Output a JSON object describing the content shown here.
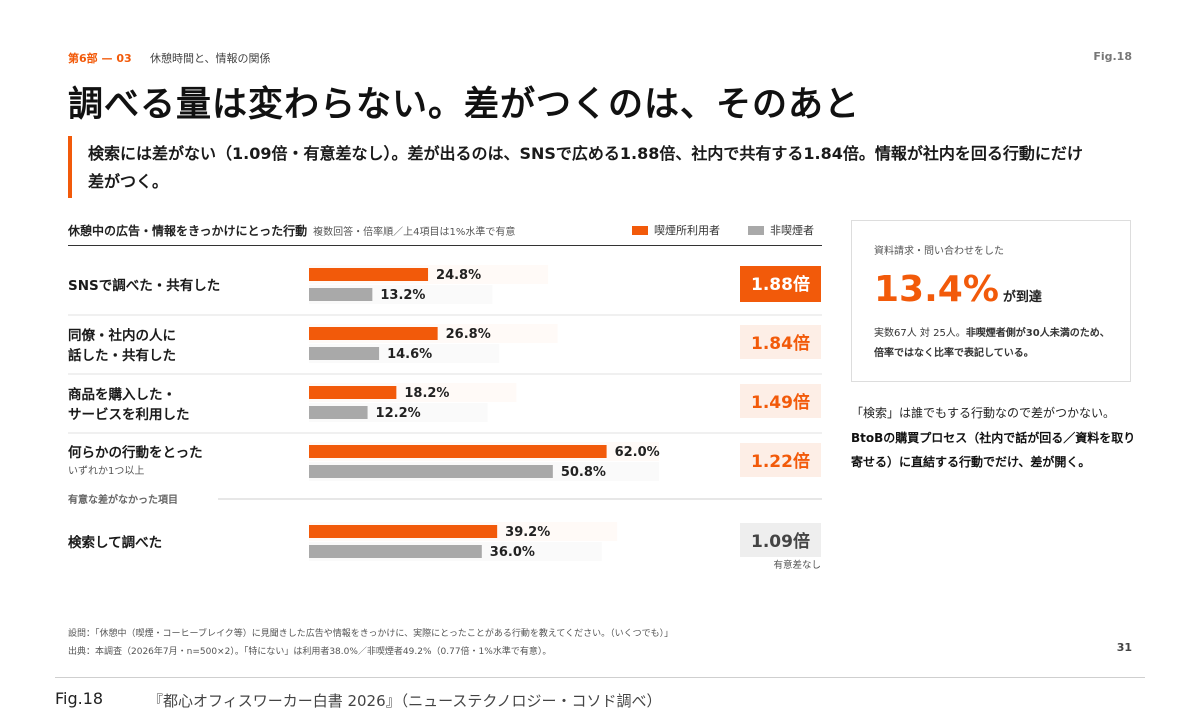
{
  "header": {
    "section_no": "第6部 — 03",
    "section_title": "休憩時間と、情報の関係",
    "fig_tag": "Fig.18"
  },
  "headline": "調べる量は変わらない。差がつくのは、そのあと",
  "lead": "検索には差がない（1.09倍・有意差なし）。差が出るのは、SNSで広める1.88倍、社内で共有する1.84倍。情報が社内を回る行動にだけ差がつく。",
  "colors": {
    "accent": "#f25a0a",
    "smoker": "#f25a0a",
    "non_smoker": "#a9a9a9",
    "ratio_dark": "#f25a0a",
    "ratio_light": "#fdeee6",
    "ratio_gray": "#eeeeee"
  },
  "chart_data": {
    "type": "bar",
    "orientation": "horizontal",
    "title": "休憩中の広告・情報をきっかけにとった行動",
    "note": "複数回答・倍率順／上4項目は1%水準で有意",
    "series": [
      {
        "name": "喫煙所利用者",
        "values": [
          24.8,
          26.8,
          18.2,
          62.0,
          39.2
        ]
      },
      {
        "name": "非喫煙者",
        "values": [
          13.2,
          14.6,
          12.2,
          50.8,
          36.0
        ]
      }
    ],
    "categories": [
      [
        "SNSで調べた・共有した"
      ],
      [
        "同僚・社内の人に",
        "話した・共有した"
      ],
      [
        "商品を購入した・",
        "サービスを利用した"
      ],
      [
        "何らかの行動をとった"
      ],
      [
        "検索して調べた"
      ]
    ],
    "category_sub": [
      "",
      "",
      "",
      "いずれか1つ以上",
      ""
    ],
    "value_labels": [
      [
        "24.8%",
        "13.2%"
      ],
      [
        "26.8%",
        "14.6%"
      ],
      [
        "18.2%",
        "12.2%"
      ],
      [
        "62.0%",
        "50.8%"
      ],
      [
        "39.2%",
        "36.0%"
      ]
    ],
    "ratios": [
      1.88,
      1.84,
      1.49,
      1.22,
      1.09
    ],
    "ratio_labels": [
      "1.88倍",
      "1.84倍",
      "1.49倍",
      "1.22倍",
      "1.09倍"
    ],
    "significant": [
      true,
      true,
      true,
      true,
      false
    ],
    "group_label": "有意な差がなかった項目",
    "ns_label": "有意差なし",
    "xlim": [
      0,
      100
    ],
    "legend_position": "top-right"
  },
  "side": {
    "card_label": "資料請求・問い合わせをした",
    "big_value": "13.4%",
    "big_suffix": "が到達",
    "note_plain": "実数67人 対 25人。",
    "note_bold": "非喫煙者側が30人未満のため、倍率ではなく比率で表記している。",
    "text1": "「検索」は誰でもする行動なので差がつかない。",
    "text2": "BtoBの購買プロセス（社内で話が回る／資料を取り寄せる）に直結する行動でだけ、差が開く。"
  },
  "footer": {
    "question": "設問：「休憩中（喫煙・コーヒーブレイク等）に見聞きした広告や情報をきっかけに、実際にとったことがある行動を教えてください。（いくつでも）」",
    "source": "出典：本調査（2026年7月・n=500×2）。「特にない」は利用者38.0%／非喫煙者49.2%（0.77倍・1%水準で有意）。",
    "page_no": "31"
  },
  "caption": {
    "fig": "Fig.18",
    "text": "『都心オフィスワーカー白書 2026』（ニューステクノロジー・コソド調べ）"
  }
}
